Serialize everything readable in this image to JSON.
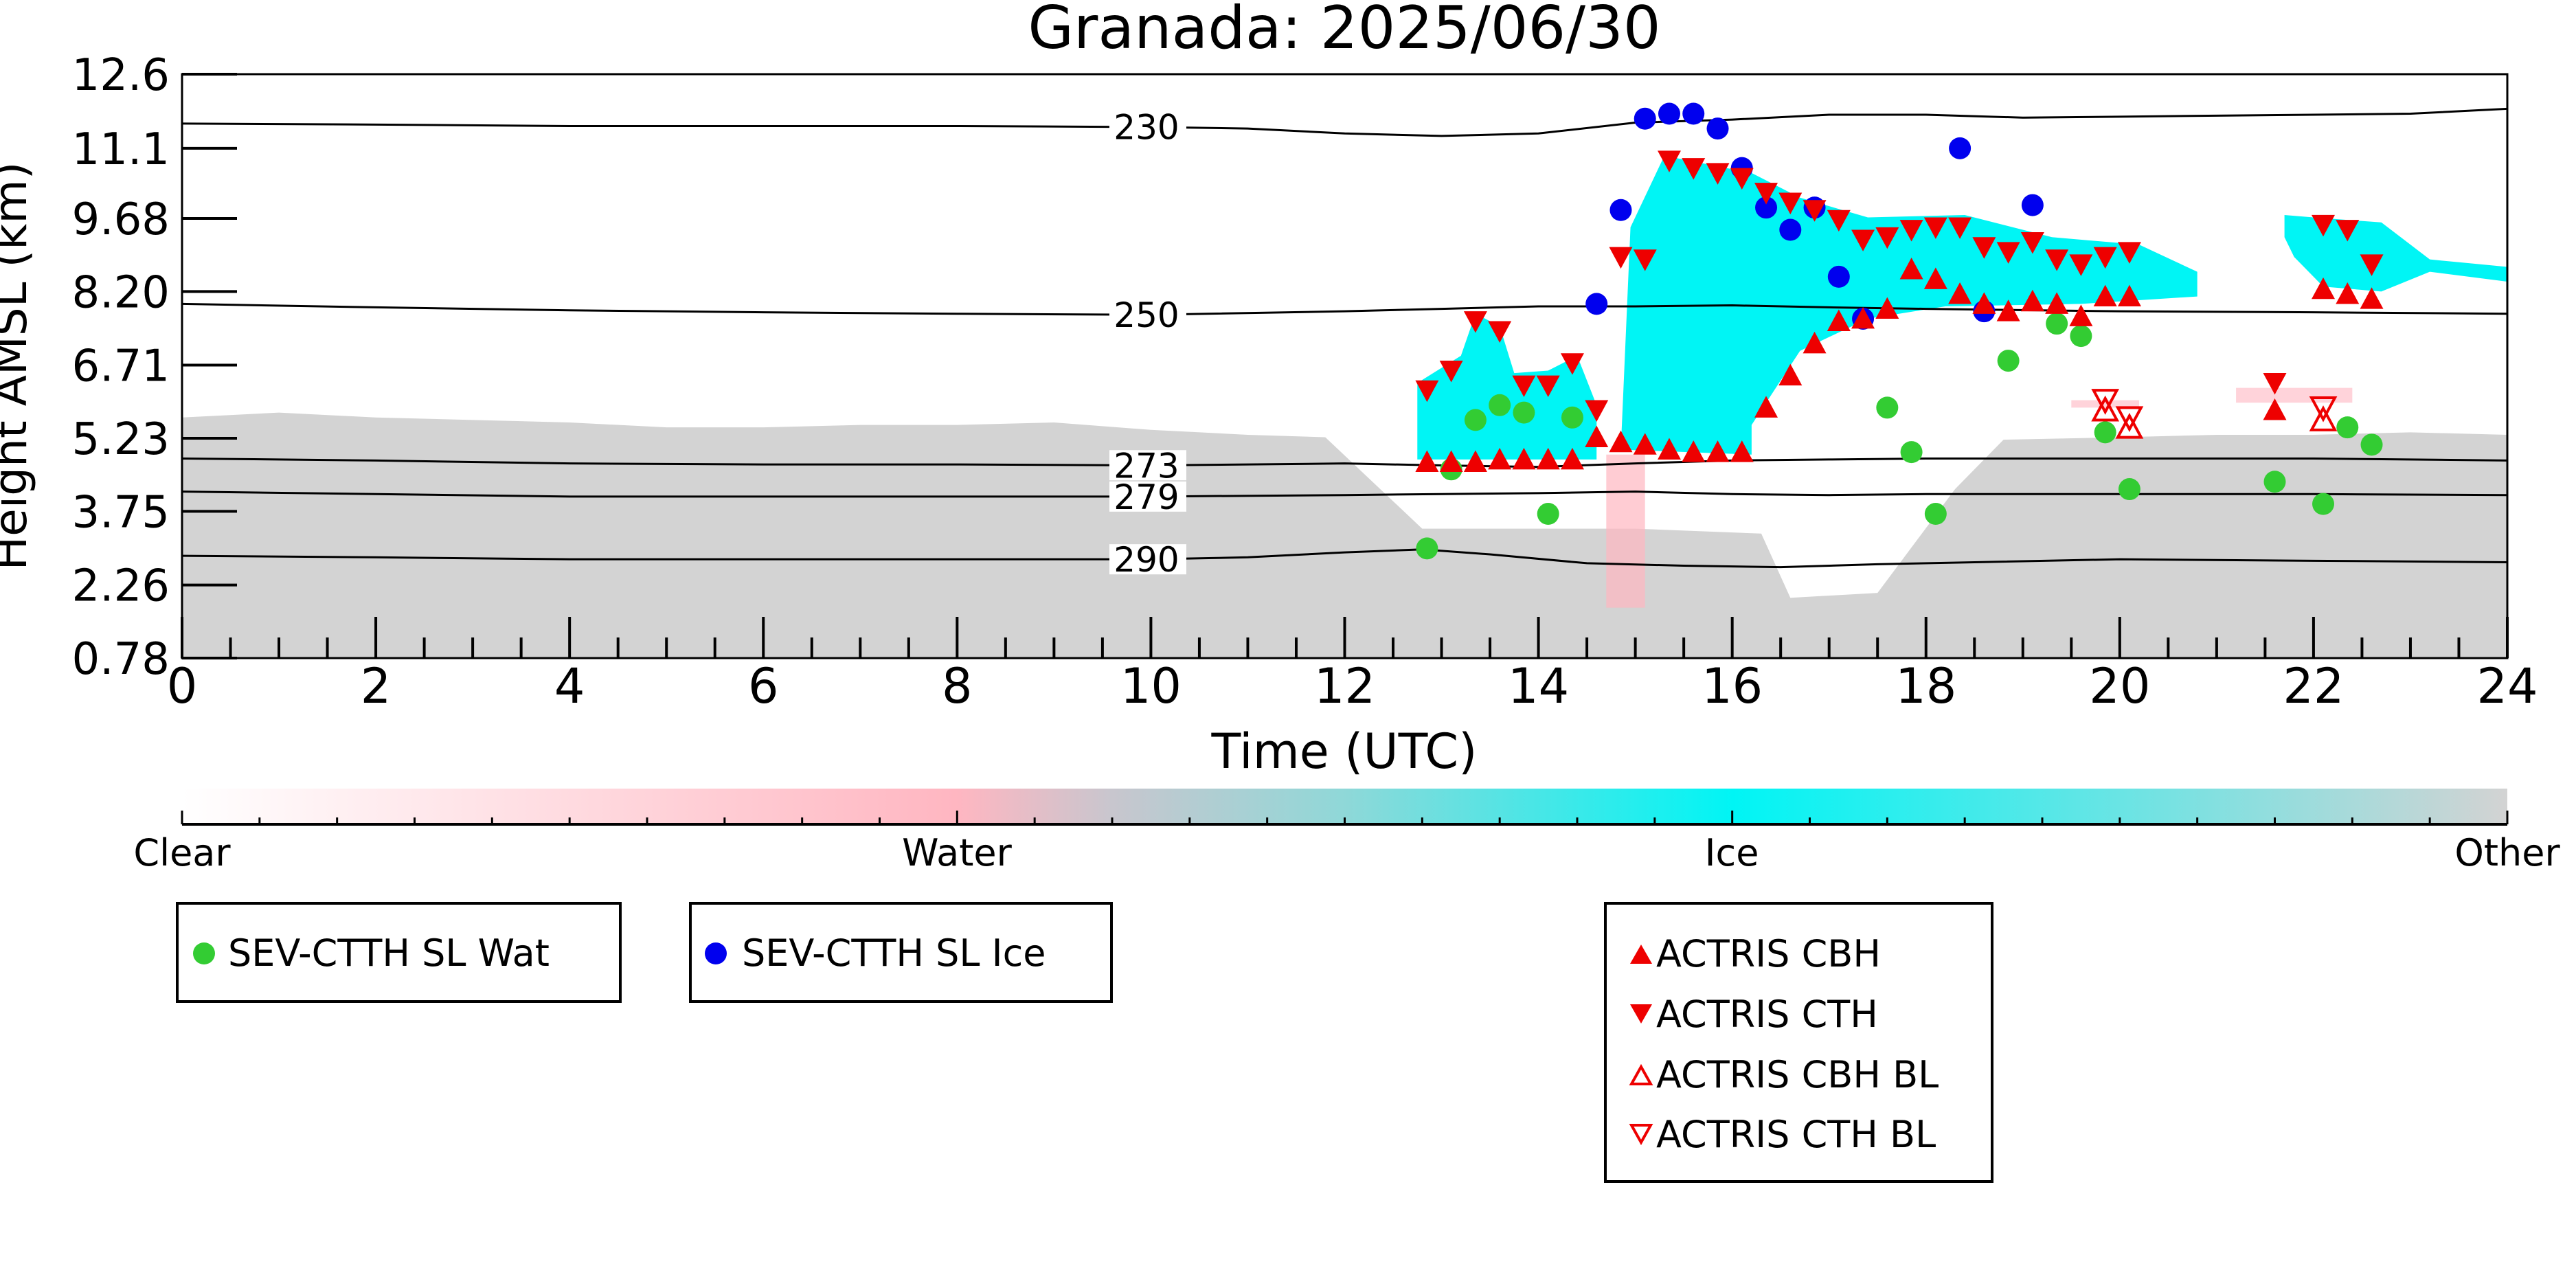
{
  "chart_data": {
    "type": "scatter",
    "title": "Granada: 2025/06/30",
    "xlabel": "Time (UTC)",
    "ylabel": "Height AMSL (km)",
    "xlim": [
      0,
      24
    ],
    "ylim": [
      0.78,
      12.6
    ],
    "x_ticks": [
      0,
      2,
      4,
      6,
      8,
      10,
      12,
      14,
      16,
      18,
      20,
      22,
      24
    ],
    "y_ticks": [
      "0.78",
      "2.26",
      "3.75",
      "5.23",
      "6.71",
      "8.20",
      "9.68",
      "11.1",
      "12.6"
    ],
    "y_tick_values": [
      0.78,
      2.26,
      3.75,
      5.23,
      6.71,
      8.2,
      9.68,
      11.1,
      12.6
    ],
    "contours": [
      {
        "label": "230",
        "label_x": 9.6,
        "points": [
          [
            0,
            11.6
          ],
          [
            2,
            11.58
          ],
          [
            4,
            11.55
          ],
          [
            6,
            11.55
          ],
          [
            8,
            11.55
          ],
          [
            10,
            11.53
          ],
          [
            11,
            11.5
          ],
          [
            12,
            11.4
          ],
          [
            13,
            11.35
          ],
          [
            14,
            11.4
          ],
          [
            15,
            11.62
          ],
          [
            16,
            11.68
          ],
          [
            17,
            11.78
          ],
          [
            18,
            11.78
          ],
          [
            19,
            11.72
          ],
          [
            20,
            11.74
          ],
          [
            21,
            11.76
          ],
          [
            22,
            11.78
          ],
          [
            23,
            11.8
          ],
          [
            24,
            11.9
          ]
        ]
      },
      {
        "label": "250",
        "label_x": 9.6,
        "points": [
          [
            0,
            7.95
          ],
          [
            2,
            7.88
          ],
          [
            4,
            7.82
          ],
          [
            6,
            7.78
          ],
          [
            8,
            7.75
          ],
          [
            10,
            7.73
          ],
          [
            12,
            7.8
          ],
          [
            13,
            7.85
          ],
          [
            14,
            7.9
          ],
          [
            15,
            7.9
          ],
          [
            16,
            7.92
          ],
          [
            17,
            7.88
          ],
          [
            18,
            7.85
          ],
          [
            20,
            7.8
          ],
          [
            22,
            7.78
          ],
          [
            24,
            7.75
          ]
        ]
      },
      {
        "label": "273",
        "label_x": 9.6,
        "points": [
          [
            0,
            4.82
          ],
          [
            2,
            4.78
          ],
          [
            4,
            4.72
          ],
          [
            6,
            4.7
          ],
          [
            8,
            4.7
          ],
          [
            10,
            4.68
          ],
          [
            12,
            4.72
          ],
          [
            13,
            4.68
          ],
          [
            14,
            4.65
          ],
          [
            15,
            4.72
          ],
          [
            16,
            4.78
          ],
          [
            17,
            4.8
          ],
          [
            18,
            4.82
          ],
          [
            20,
            4.82
          ],
          [
            22,
            4.82
          ],
          [
            24,
            4.78
          ]
        ]
      },
      {
        "label": "279",
        "label_x": 9.6,
        "points": [
          [
            0,
            4.15
          ],
          [
            2,
            4.1
          ],
          [
            4,
            4.05
          ],
          [
            6,
            4.05
          ],
          [
            8,
            4.05
          ],
          [
            10,
            4.05
          ],
          [
            12,
            4.08
          ],
          [
            13,
            4.1
          ],
          [
            14,
            4.12
          ],
          [
            15,
            4.15
          ],
          [
            16,
            4.1
          ],
          [
            17,
            4.08
          ],
          [
            18,
            4.1
          ],
          [
            20,
            4.1
          ],
          [
            22,
            4.1
          ],
          [
            24,
            4.08
          ]
        ]
      },
      {
        "label": "290",
        "label_x": 9.6,
        "points": [
          [
            0,
            2.85
          ],
          [
            2,
            2.82
          ],
          [
            4,
            2.78
          ],
          [
            6,
            2.78
          ],
          [
            8,
            2.78
          ],
          [
            10,
            2.78
          ],
          [
            11,
            2.82
          ],
          [
            12,
            2.92
          ],
          [
            12.8,
            2.98
          ],
          [
            13.5,
            2.88
          ],
          [
            14.5,
            2.7
          ],
          [
            15.5,
            2.65
          ],
          [
            16.5,
            2.62
          ],
          [
            17.5,
            2.68
          ],
          [
            18.5,
            2.72
          ],
          [
            20,
            2.78
          ],
          [
            22,
            2.75
          ],
          [
            24,
            2.72
          ]
        ]
      }
    ],
    "series": [
      {
        "name": "SEV-CTTH SL Wat",
        "marker": "circle",
        "color": "#33cc33",
        "points": [
          [
            12.85,
            3.0
          ],
          [
            13.1,
            4.6
          ],
          [
            13.35,
            5.6
          ],
          [
            13.6,
            5.9
          ],
          [
            13.85,
            5.75
          ],
          [
            14.1,
            3.7
          ],
          [
            14.35,
            5.65
          ],
          [
            17.6,
            5.85
          ],
          [
            17.85,
            4.95
          ],
          [
            18.1,
            3.7
          ],
          [
            18.85,
            6.8
          ],
          [
            19.35,
            7.55
          ],
          [
            19.6,
            7.3
          ],
          [
            19.85,
            5.35
          ],
          [
            20.1,
            4.2
          ],
          [
            21.6,
            4.35
          ],
          [
            22.1,
            3.9
          ],
          [
            22.35,
            5.45
          ],
          [
            22.6,
            5.1
          ]
        ]
      },
      {
        "name": "SEV-CTTH SL Ice",
        "marker": "circle",
        "color": "#0000ee",
        "points": [
          [
            14.6,
            7.95
          ],
          [
            14.85,
            9.85
          ],
          [
            15.1,
            11.7
          ],
          [
            15.35,
            11.8
          ],
          [
            15.6,
            11.8
          ],
          [
            15.85,
            11.5
          ],
          [
            16.1,
            10.7
          ],
          [
            16.35,
            9.9
          ],
          [
            16.6,
            9.45
          ],
          [
            16.85,
            9.9
          ],
          [
            17.1,
            8.5
          ],
          [
            17.35,
            7.65
          ],
          [
            18.35,
            11.1
          ],
          [
            18.6,
            7.8
          ],
          [
            19.1,
            9.95
          ]
        ]
      },
      {
        "name": "ACTRIS CBH",
        "marker": "triangle-up",
        "color": "#ee0000",
        "filled": true,
        "points": [
          [
            12.85,
            4.75
          ],
          [
            13.1,
            4.75
          ],
          [
            13.35,
            4.75
          ],
          [
            13.6,
            4.8
          ],
          [
            13.85,
            4.8
          ],
          [
            14.1,
            4.8
          ],
          [
            14.35,
            4.8
          ],
          [
            14.6,
            5.25
          ],
          [
            14.85,
            5.15
          ],
          [
            15.1,
            5.1
          ],
          [
            15.35,
            5.0
          ],
          [
            15.6,
            4.95
          ],
          [
            15.85,
            4.95
          ],
          [
            16.1,
            4.95
          ],
          [
            16.35,
            5.85
          ],
          [
            16.6,
            6.5
          ],
          [
            16.85,
            7.15
          ],
          [
            17.1,
            7.6
          ],
          [
            17.35,
            7.65
          ],
          [
            17.6,
            7.85
          ],
          [
            17.85,
            8.65
          ],
          [
            18.1,
            8.45
          ],
          [
            18.35,
            8.15
          ],
          [
            18.6,
            7.95
          ],
          [
            18.85,
            7.8
          ],
          [
            19.1,
            8.0
          ],
          [
            19.35,
            7.95
          ],
          [
            19.6,
            7.7
          ],
          [
            19.85,
            8.1
          ],
          [
            20.1,
            8.1
          ],
          [
            21.6,
            5.8
          ],
          [
            22.1,
            8.25
          ],
          [
            22.35,
            8.15
          ],
          [
            22.6,
            8.05
          ]
        ]
      },
      {
        "name": "ACTRIS CTH",
        "marker": "triangle-down",
        "color": "#ee0000",
        "filled": true,
        "points": [
          [
            12.85,
            6.2
          ],
          [
            13.1,
            6.6
          ],
          [
            13.35,
            7.6
          ],
          [
            13.6,
            7.4
          ],
          [
            13.85,
            6.3
          ],
          [
            14.1,
            6.3
          ],
          [
            14.35,
            6.75
          ],
          [
            14.6,
            5.8
          ],
          [
            14.85,
            8.9
          ],
          [
            15.1,
            8.85
          ],
          [
            15.35,
            10.85
          ],
          [
            15.6,
            10.7
          ],
          [
            15.85,
            10.6
          ],
          [
            16.1,
            10.5
          ],
          [
            16.35,
            10.2
          ],
          [
            16.6,
            10.0
          ],
          [
            16.85,
            9.85
          ],
          [
            17.1,
            9.65
          ],
          [
            17.35,
            9.25
          ],
          [
            17.6,
            9.3
          ],
          [
            17.85,
            9.45
          ],
          [
            18.1,
            9.5
          ],
          [
            18.35,
            9.5
          ],
          [
            18.6,
            9.1
          ],
          [
            18.85,
            9.0
          ],
          [
            19.1,
            9.2
          ],
          [
            19.35,
            8.85
          ],
          [
            19.6,
            8.75
          ],
          [
            19.85,
            8.9
          ],
          [
            20.1,
            9.0
          ],
          [
            21.6,
            6.35
          ],
          [
            22.1,
            9.55
          ],
          [
            22.35,
            9.45
          ],
          [
            22.6,
            8.75
          ]
        ]
      },
      {
        "name": "ACTRIS CBH BL",
        "marker": "triangle-up",
        "color": "#ee0000",
        "filled": false,
        "points": [
          [
            19.85,
            5.8
          ],
          [
            20.1,
            5.45
          ],
          [
            22.1,
            5.6
          ]
        ]
      },
      {
        "name": "ACTRIS CTH BL",
        "marker": "triangle-down",
        "color": "#ee0000",
        "filled": false,
        "points": [
          [
            19.85,
            6.0
          ],
          [
            20.1,
            5.65
          ],
          [
            22.1,
            5.85
          ]
        ]
      }
    ],
    "colorbar": {
      "labels": [
        "Clear",
        "Water",
        "Ice",
        "Other"
      ],
      "colors": [
        "#ffffff",
        "#ffb6c1",
        "#00f5f5",
        "#d3d3d3"
      ]
    },
    "legend": [
      {
        "box": "legend-left",
        "entries": [
          "SEV-CTTH SL Wat"
        ]
      },
      {
        "box": "legend-middle",
        "entries": [
          "SEV-CTTH SL Ice"
        ]
      },
      {
        "box": "legend-right",
        "entries": [
          "ACTRIS CBH",
          "ACTRIS CTH",
          "ACTRIS CBH BL",
          "ACTRIS CTH BL"
        ]
      }
    ]
  }
}
